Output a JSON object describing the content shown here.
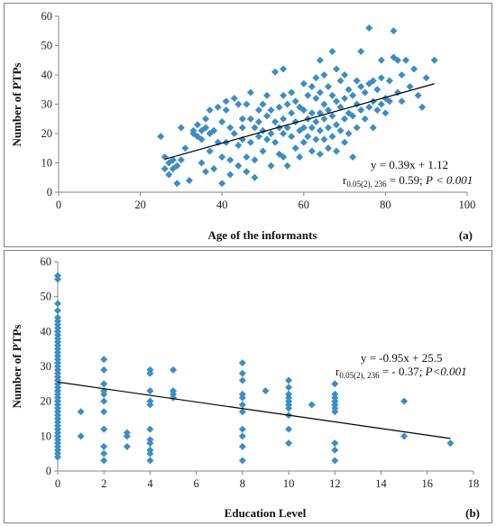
{
  "colors": {
    "marker": "#3C8DC4",
    "trend": "#000000"
  },
  "chart_data": [
    {
      "type": "scatter",
      "panel_label": "(a)",
      "xlabel": "Age of the informants",
      "ylabel": "Number of PTPs",
      "xlim": [
        0,
        100
      ],
      "ylim": [
        0,
        60
      ],
      "xticks": [
        0,
        20,
        40,
        60,
        80,
        100
      ],
      "yticks": [
        0,
        10,
        20,
        30,
        40,
        50,
        60
      ],
      "grid": false,
      "annotation": {
        "equation": "y = 0.39x + 1.12",
        "r_prefix": "r",
        "r_sub": "0.05(2), 236",
        "r_value": " = 0.59; ",
        "p_text": "P < 0.001"
      },
      "trendline": {
        "slope": 0.39,
        "intercept": 1.12,
        "x_range": [
          26,
          92
        ]
      },
      "points": [
        [
          25,
          19
        ],
        [
          26,
          12
        ],
        [
          26,
          8
        ],
        [
          27,
          10
        ],
        [
          27,
          6
        ],
        [
          28,
          8
        ],
        [
          28,
          11
        ],
        [
          29,
          3
        ],
        [
          29,
          9
        ],
        [
          30,
          22
        ],
        [
          30,
          11
        ],
        [
          31,
          15
        ],
        [
          32,
          4
        ],
        [
          33,
          20
        ],
        [
          33,
          21
        ],
        [
          34,
          19
        ],
        [
          34,
          23
        ],
        [
          35,
          18
        ],
        [
          35,
          21
        ],
        [
          35,
          10
        ],
        [
          36,
          25
        ],
        [
          36,
          22
        ],
        [
          36,
          7
        ],
        [
          37,
          28
        ],
        [
          37,
          20
        ],
        [
          37,
          14
        ],
        [
          38,
          21
        ],
        [
          38,
          8
        ],
        [
          39,
          17
        ],
        [
          39,
          29
        ],
        [
          40,
          24
        ],
        [
          40,
          3
        ],
        [
          40,
          12
        ],
        [
          41,
          31
        ],
        [
          41,
          28
        ],
        [
          41,
          17
        ],
        [
          42,
          22
        ],
        [
          42,
          11
        ],
        [
          42,
          6
        ],
        [
          43,
          32
        ],
        [
          43,
          20
        ],
        [
          44,
          30
        ],
        [
          44,
          16
        ],
        [
          44,
          9
        ],
        [
          45,
          25
        ],
        [
          45,
          22
        ],
        [
          45,
          18
        ],
        [
          46,
          30
        ],
        [
          46,
          12
        ],
        [
          46,
          7
        ],
        [
          47,
          34
        ],
        [
          47,
          25
        ],
        [
          47,
          17
        ],
        [
          48,
          22
        ],
        [
          48,
          11
        ],
        [
          48,
          5
        ],
        [
          49,
          28
        ],
        [
          49,
          24
        ],
        [
          49,
          19
        ],
        [
          50,
          30
        ],
        [
          50,
          21
        ],
        [
          50,
          14
        ],
        [
          51,
          33
        ],
        [
          51,
          26
        ],
        [
          51,
          18
        ],
        [
          52,
          28
        ],
        [
          52,
          20
        ],
        [
          52,
          9
        ],
        [
          53,
          41
        ],
        [
          53,
          24
        ],
        [
          53,
          17
        ],
        [
          54,
          29
        ],
        [
          54,
          22
        ],
        [
          54,
          13
        ],
        [
          55,
          42
        ],
        [
          55,
          33
        ],
        [
          55,
          25
        ],
        [
          55,
          20
        ],
        [
          55,
          12
        ],
        [
          56,
          30
        ],
        [
          56,
          22
        ],
        [
          56,
          9
        ],
        [
          57,
          34
        ],
        [
          57,
          27
        ],
        [
          57,
          19
        ],
        [
          58,
          31
        ],
        [
          58,
          24
        ],
        [
          58,
          15
        ],
        [
          59,
          29
        ],
        [
          59,
          21
        ],
        [
          59,
          12
        ],
        [
          60,
          37
        ],
        [
          60,
          28
        ],
        [
          60,
          22
        ],
        [
          60,
          17
        ],
        [
          61,
          33
        ],
        [
          61,
          25
        ],
        [
          61,
          19
        ],
        [
          62,
          36
        ],
        [
          62,
          27
        ],
        [
          62,
          22
        ],
        [
          62,
          14
        ],
        [
          63,
          39
        ],
        [
          63,
          32
        ],
        [
          63,
          24
        ],
        [
          63,
          18
        ],
        [
          64,
          45
        ],
        [
          64,
          34
        ],
        [
          64,
          27
        ],
        [
          64,
          21
        ],
        [
          64,
          13
        ],
        [
          65,
          40
        ],
        [
          65,
          30
        ],
        [
          65,
          25
        ],
        [
          65,
          18
        ],
        [
          66,
          36
        ],
        [
          66,
          28
        ],
        [
          66,
          22
        ],
        [
          66,
          15
        ],
        [
          67,
          48
        ],
        [
          67,
          33
        ],
        [
          67,
          26
        ],
        [
          67,
          19
        ],
        [
          68,
          42
        ],
        [
          68,
          31
        ],
        [
          68,
          23
        ],
        [
          68,
          14
        ],
        [
          69,
          38
        ],
        [
          69,
          29
        ],
        [
          69,
          21
        ],
        [
          70,
          40
        ],
        [
          70,
          32
        ],
        [
          70,
          25
        ],
        [
          70,
          17
        ],
        [
          71,
          35
        ],
        [
          71,
          27
        ],
        [
          71,
          20
        ],
        [
          72,
          33
        ],
        [
          72,
          26
        ],
        [
          72,
          12
        ],
        [
          73,
          38
        ],
        [
          73,
          30
        ],
        [
          73,
          22
        ],
        [
          74,
          48
        ],
        [
          74,
          36
        ],
        [
          74,
          28
        ],
        [
          75,
          34
        ],
        [
          75,
          25
        ],
        [
          76,
          56
        ],
        [
          76,
          37
        ],
        [
          76,
          29
        ],
        [
          77,
          38
        ],
        [
          77,
          31
        ],
        [
          77,
          22
        ],
        [
          78,
          35
        ],
        [
          78,
          28
        ],
        [
          79,
          45
        ],
        [
          79,
          39
        ],
        [
          79,
          30
        ],
        [
          80,
          32
        ],
        [
          80,
          27
        ],
        [
          81,
          38
        ],
        [
          81,
          31
        ],
        [
          82,
          55
        ],
        [
          82,
          46
        ],
        [
          83,
          45
        ],
        [
          83,
          34
        ],
        [
          84,
          40
        ],
        [
          84,
          31
        ],
        [
          85,
          45
        ],
        [
          86,
          36
        ],
        [
          87,
          42
        ],
        [
          88,
          33
        ],
        [
          89,
          29
        ],
        [
          90,
          39
        ],
        [
          92,
          45
        ]
      ]
    },
    {
      "type": "scatter",
      "panel_label": "(b)",
      "xlabel": "Education Level",
      "ylabel": "Number of PTPs",
      "xlim": [
        0,
        18
      ],
      "ylim": [
        0,
        60
      ],
      "xticks": [
        0,
        2,
        4,
        6,
        8,
        10,
        12,
        14,
        16,
        18
      ],
      "yticks": [
        0,
        10,
        20,
        30,
        40,
        50,
        60
      ],
      "grid": false,
      "annotation": {
        "equation": "y = -0.95x + 25.5",
        "r_prefix": "r",
        "r_sub": "0.05(2), 236",
        "r_value": " = - 0.37; ",
        "p_text": "P<0.001"
      },
      "trendline": {
        "slope": -0.95,
        "intercept": 25.5,
        "x_range": [
          0,
          17
        ]
      },
      "points": [
        [
          0,
          56
        ],
        [
          0,
          55
        ],
        [
          0,
          48
        ],
        [
          0,
          46
        ],
        [
          0,
          44
        ],
        [
          0,
          43
        ],
        [
          0,
          42
        ],
        [
          0,
          41
        ],
        [
          0,
          40
        ],
        [
          0,
          39
        ],
        [
          0,
          38
        ],
        [
          0,
          37
        ],
        [
          0,
          36
        ],
        [
          0,
          35
        ],
        [
          0,
          34
        ],
        [
          0,
          33
        ],
        [
          0,
          32
        ],
        [
          0,
          31
        ],
        [
          0,
          30
        ],
        [
          0,
          29
        ],
        [
          0,
          28
        ],
        [
          0,
          27
        ],
        [
          0,
          26
        ],
        [
          0,
          25
        ],
        [
          0,
          24
        ],
        [
          0,
          23
        ],
        [
          0,
          22
        ],
        [
          0,
          21
        ],
        [
          0,
          20
        ],
        [
          0,
          19
        ],
        [
          0,
          18
        ],
        [
          0,
          17
        ],
        [
          0,
          16
        ],
        [
          0,
          15
        ],
        [
          0,
          14
        ],
        [
          0,
          13
        ],
        [
          0,
          12
        ],
        [
          0,
          11
        ],
        [
          0,
          10
        ],
        [
          0,
          9
        ],
        [
          0,
          8
        ],
        [
          0,
          7
        ],
        [
          0,
          6
        ],
        [
          0,
          5
        ],
        [
          0,
          4
        ],
        [
          1,
          17
        ],
        [
          1,
          10
        ],
        [
          2,
          32
        ],
        [
          2,
          29
        ],
        [
          2,
          25
        ],
        [
          2,
          23
        ],
        [
          2,
          22
        ],
        [
          2,
          20
        ],
        [
          2,
          17
        ],
        [
          2,
          12
        ],
        [
          2,
          7
        ],
        [
          2,
          5
        ],
        [
          2,
          3
        ],
        [
          3,
          11
        ],
        [
          3,
          10
        ],
        [
          3,
          7
        ],
        [
          4,
          29
        ],
        [
          4,
          28
        ],
        [
          4,
          23
        ],
        [
          4,
          20
        ],
        [
          4,
          19
        ],
        [
          4,
          12
        ],
        [
          4,
          9
        ],
        [
          4,
          8
        ],
        [
          4,
          6
        ],
        [
          4,
          5
        ],
        [
          4,
          3
        ],
        [
          5,
          29
        ],
        [
          5,
          23
        ],
        [
          5,
          22
        ],
        [
          5,
          21
        ],
        [
          8,
          31
        ],
        [
          8,
          28
        ],
        [
          8,
          26
        ],
        [
          8,
          22
        ],
        [
          8,
          21
        ],
        [
          8,
          19
        ],
        [
          8,
          17
        ],
        [
          8,
          12
        ],
        [
          8,
          10
        ],
        [
          8,
          7
        ],
        [
          8,
          3
        ],
        [
          9,
          23
        ],
        [
          10,
          26
        ],
        [
          10,
          24
        ],
        [
          10,
          22
        ],
        [
          10,
          21
        ],
        [
          10,
          20
        ],
        [
          10,
          19
        ],
        [
          10,
          18
        ],
        [
          10,
          16
        ],
        [
          10,
          12
        ],
        [
          10,
          8
        ],
        [
          11,
          19
        ],
        [
          12,
          25
        ],
        [
          12,
          22
        ],
        [
          12,
          21
        ],
        [
          12,
          20
        ],
        [
          12,
          19
        ],
        [
          12,
          18
        ],
        [
          12,
          17
        ],
        [
          12,
          8
        ],
        [
          12,
          6
        ],
        [
          12,
          3
        ],
        [
          15,
          20
        ],
        [
          15,
          10
        ],
        [
          17,
          8
        ]
      ]
    }
  ]
}
